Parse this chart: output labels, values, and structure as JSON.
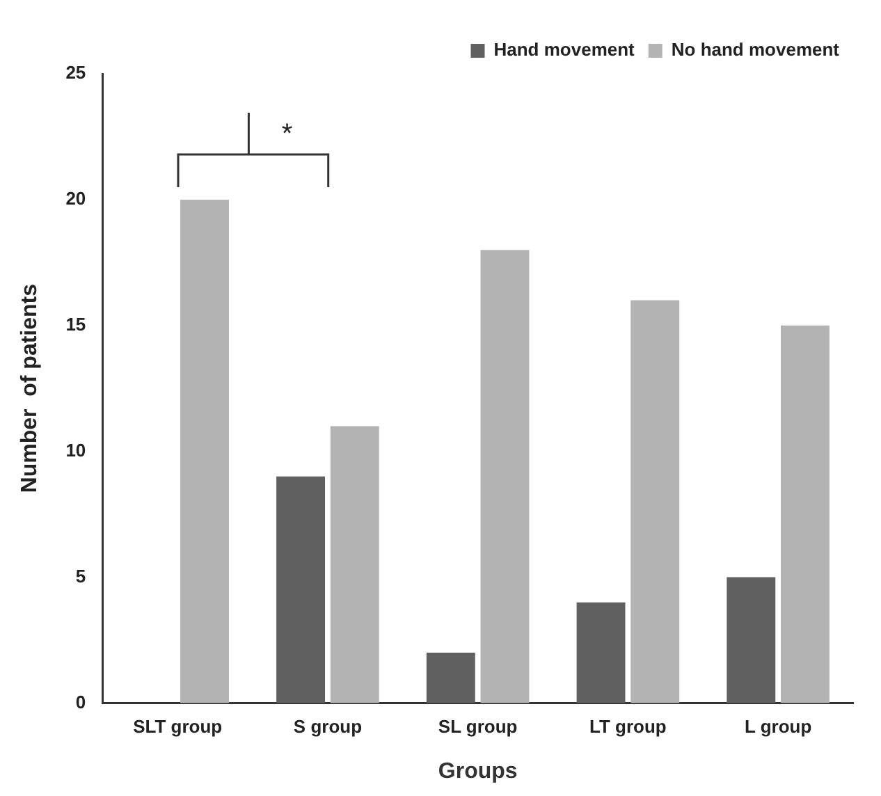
{
  "chart_data": {
    "type": "bar",
    "xlabel": "Groups",
    "ylabel": "Number  of patients",
    "categories": [
      "SLT group",
      "S group",
      "SL group",
      "LT group",
      "L group"
    ],
    "series": [
      {
        "name": "Hand movement",
        "color": "#606060",
        "values": [
          0,
          9,
          2,
          4,
          5
        ]
      },
      {
        "name": "No hand movement",
        "color": "#b3b3b3",
        "values": [
          20,
          11,
          18,
          16,
          15
        ]
      }
    ],
    "ylim": [
      0,
      25
    ],
    "yticks": [
      0,
      5,
      10,
      15,
      20,
      25
    ],
    "grid": false,
    "legend": "top right",
    "annotations": [
      "*"
    ]
  }
}
